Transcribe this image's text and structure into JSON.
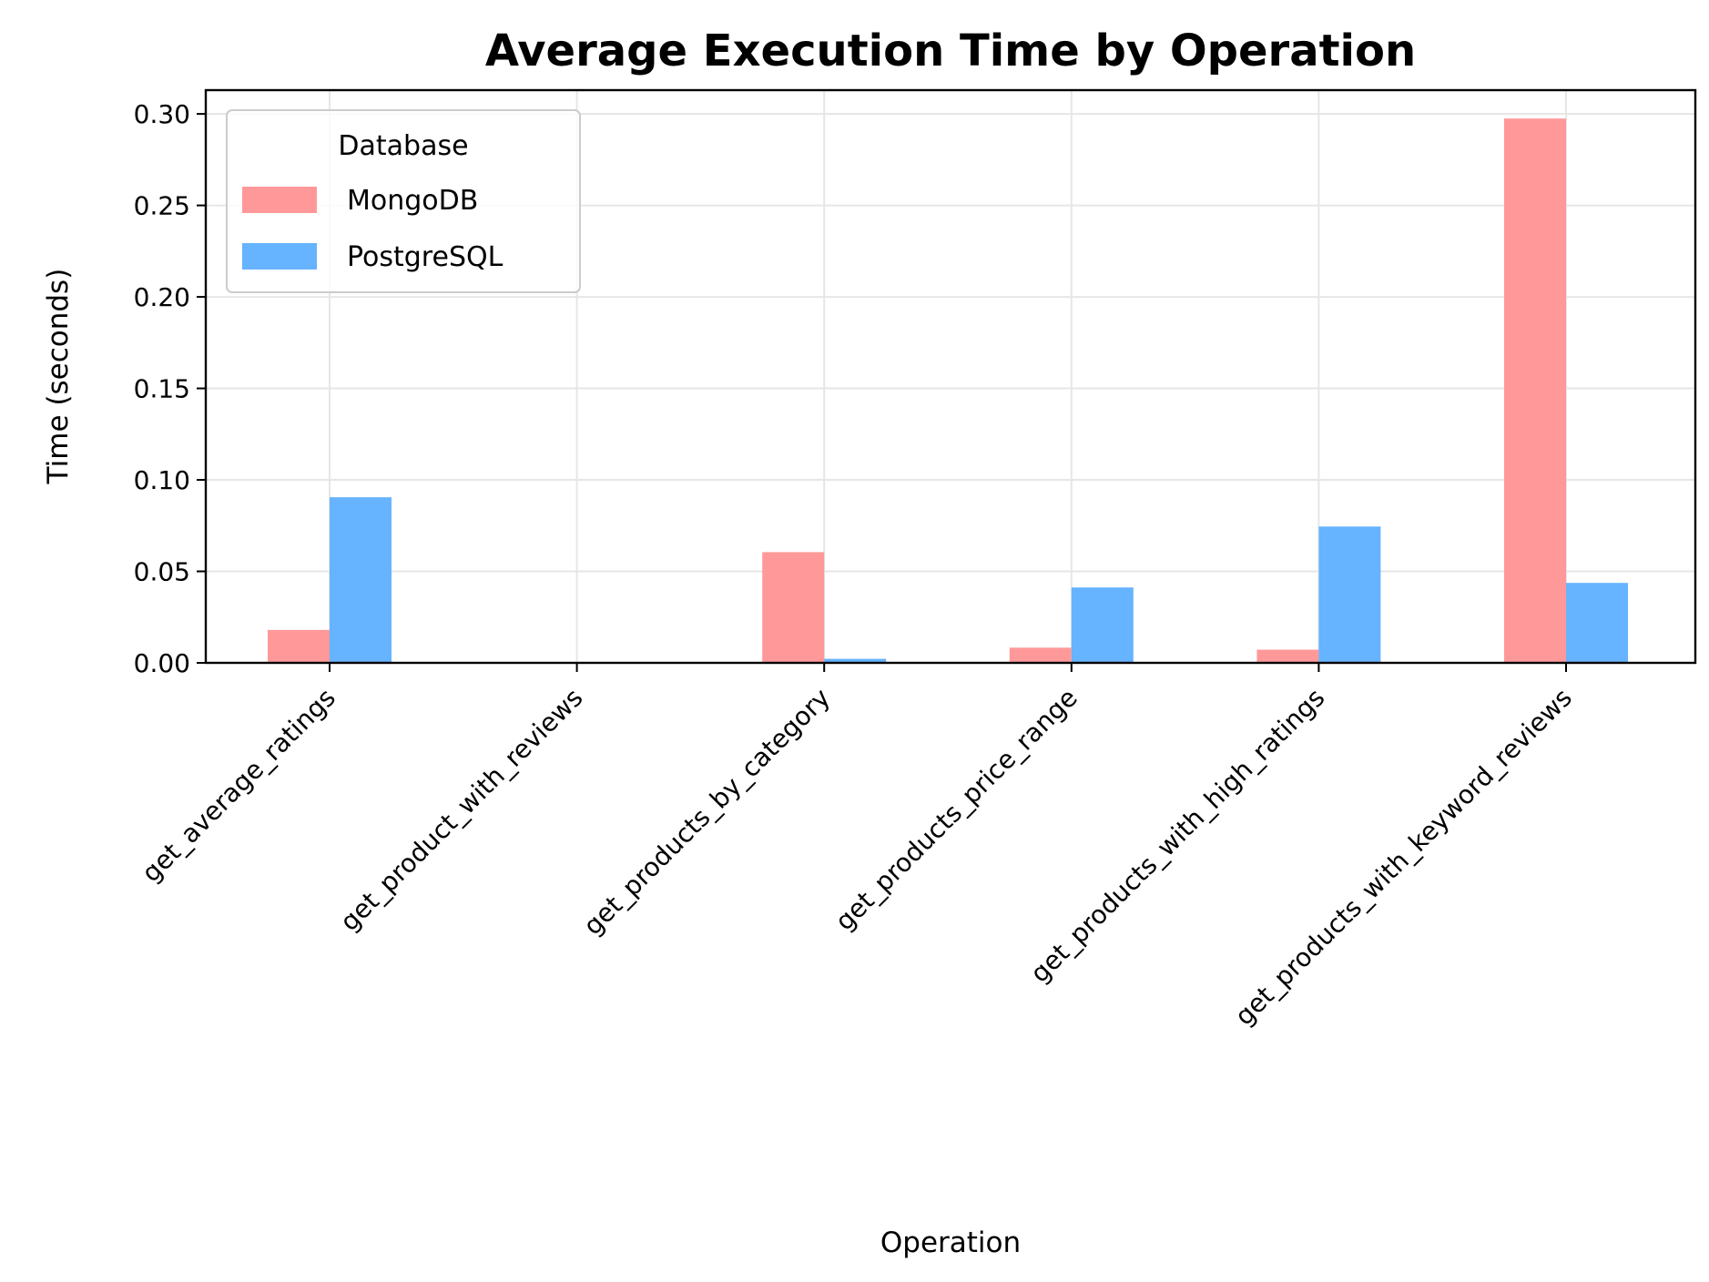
{
  "chart_data": {
    "type": "bar",
    "title": "Average Execution Time by Operation",
    "xlabel": "Operation",
    "ylabel": "Time (seconds)",
    "ylim": [
      0,
      0.313
    ],
    "yticks": [
      "0.00",
      "0.05",
      "0.10",
      "0.15",
      "0.20",
      "0.25",
      "0.30"
    ],
    "grid": true,
    "categories": [
      "get_average_ratings",
      "get_product_with_reviews",
      "get_products_by_category",
      "get_products_price_range",
      "get_products_with_high_ratings",
      "get_products_with_keyword_reviews"
    ],
    "legend": {
      "title": "Database",
      "placement": "top-left"
    },
    "series": [
      {
        "name": "MongoDB",
        "color": "#ff9999",
        "values": [
          0.018,
          0.0,
          0.0605,
          0.0083,
          0.0072,
          0.2975
        ]
      },
      {
        "name": "PostgreSQL",
        "color": "#66b3ff",
        "values": [
          0.0905,
          0.0,
          0.0022,
          0.0412,
          0.0745,
          0.0437
        ]
      }
    ]
  }
}
